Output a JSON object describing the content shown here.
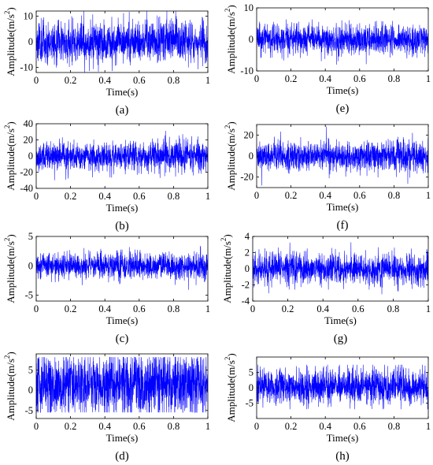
{
  "colors": {
    "signal": "#0000ff",
    "axes": "#000000",
    "background": "#ffffff"
  },
  "chart_data": [
    {
      "type": "line",
      "caption": "(a)",
      "xlabel": "Time(s)",
      "ylabel": "Amplitude(m/s",
      "ylabel_sup": "2",
      "ylabel_close": ")",
      "xlim": [
        0,
        1
      ],
      "ylim": [
        -12,
        12
      ],
      "xticks": [
        0,
        0.2,
        0.4,
        0.6,
        0.8,
        1
      ],
      "xtick_labels": [
        "0",
        "0.2",
        "0.4",
        "0.6",
        "0.8",
        "1"
      ],
      "yticks": [
        -10,
        0,
        10
      ],
      "ytick_labels": [
        "-10",
        "0",
        "10"
      ],
      "series": [
        {
          "sigma": 4.0,
          "ymin": -12,
          "ymax": 12,
          "seed": 11
        }
      ]
    },
    {
      "type": "line",
      "caption": "(e)",
      "xlabel": "Time(s)",
      "ylabel": "Amplitude(m/s",
      "ylabel_sup": "2",
      "ylabel_close": ")",
      "xlim": [
        0,
        1
      ],
      "ylim": [
        -10,
        10
      ],
      "xticks": [
        0,
        0.2,
        0.4,
        0.6,
        0.8,
        1
      ],
      "xtick_labels": [
        "0",
        "0.2",
        "0.4",
        "0.6",
        "0.8",
        "1"
      ],
      "yticks": [
        -10,
        0,
        10
      ],
      "ytick_labels": [
        "-10",
        "0",
        "10"
      ],
      "series": [
        {
          "sigma": 2.3,
          "ymin": -8,
          "ymax": 7.5,
          "seed": 23
        }
      ]
    },
    {
      "type": "line",
      "caption": "(b)",
      "xlabel": "Time(s)",
      "ylabel": "Amplitude(m/s",
      "ylabel_sup": "2",
      "ylabel_close": ")",
      "xlim": [
        0,
        1
      ],
      "ylim": [
        -40,
        40
      ],
      "xticks": [
        0,
        0.2,
        0.4,
        0.6,
        0.8,
        1
      ],
      "xtick_labels": [
        "0",
        "0.2",
        "0.4",
        "0.6",
        "0.8",
        "1"
      ],
      "yticks": [
        -40,
        -20,
        0,
        20,
        40
      ],
      "ytick_labels": [
        "-40",
        "-20",
        "0",
        "20",
        "40"
      ],
      "series": [
        {
          "sigma": 9.0,
          "ymin": -38,
          "ymax": 40,
          "seed": 37
        }
      ]
    },
    {
      "type": "line",
      "caption": "(f)",
      "xlabel": "Time(s)",
      "ylabel": "Amplitude(m/s",
      "ylabel_sup": "2",
      "ylabel_close": ")",
      "xlim": [
        0,
        1
      ],
      "ylim": [
        -30,
        30
      ],
      "xticks": [
        0,
        0.2,
        0.4,
        0.6,
        0.8,
        1
      ],
      "xtick_labels": [
        "0",
        "0.2",
        "0.4",
        "0.6",
        "0.8",
        "1"
      ],
      "yticks": [
        -20,
        0,
        20
      ],
      "ytick_labels": [
        "-20",
        "0",
        "20"
      ],
      "series": [
        {
          "sigma": 7.0,
          "ymin": -28,
          "ymax": 28,
          "seed": 41
        }
      ]
    },
    {
      "type": "line",
      "caption": "(c)",
      "xlabel": "Time(s)",
      "ylabel": "Amplitude(m/s",
      "ylabel_sup": "2",
      "ylabel_close": ")",
      "xlim": [
        0,
        1
      ],
      "ylim": [
        -6,
        5
      ],
      "xticks": [
        0,
        0.2,
        0.4,
        0.6,
        0.8,
        1
      ],
      "xtick_labels": [
        "0",
        "0.2",
        "0.4",
        "0.6",
        "0.8",
        "1"
      ],
      "yticks": [
        -5,
        0,
        5
      ],
      "ytick_labels": [
        "-5",
        "0",
        "5"
      ],
      "series": [
        {
          "sigma": 1.1,
          "ymin": -5.8,
          "ymax": 4.2,
          "seed": 53
        }
      ]
    },
    {
      "type": "line",
      "caption": "(g)",
      "xlabel": "Time(s)",
      "ylabel": "Amplitude(m/s",
      "ylabel_sup": "2",
      "ylabel_close": ")",
      "xlim": [
        0,
        1
      ],
      "ylim": [
        -4,
        4
      ],
      "xticks": [
        0,
        0.2,
        0.4,
        0.6,
        0.8,
        1
      ],
      "xtick_labels": [
        "0",
        "0.2",
        "0.4",
        "0.6",
        "0.8",
        "1"
      ],
      "yticks": [
        -4,
        -2,
        0,
        2,
        4
      ],
      "ytick_labels": [
        "-4",
        "-2",
        "0",
        "2",
        "4"
      ],
      "series": [
        {
          "sigma": 0.95,
          "ymin": -4,
          "ymax": 4,
          "seed": 67
        }
      ]
    },
    {
      "type": "line",
      "caption": "(d)",
      "xlabel": "Time(s)",
      "ylabel": "Amplitude(m/s",
      "ylabel_sup": "2",
      "ylabel_close": ")",
      "xlim": [
        0,
        1
      ],
      "ylim": [
        -7,
        9
      ],
      "xticks": [
        0,
        0.2,
        0.4,
        0.6,
        0.8,
        1
      ],
      "xtick_labels": [
        "0",
        "0.2",
        "0.4",
        "0.6",
        "0.8",
        "1"
      ],
      "yticks": [
        -5,
        0,
        5
      ],
      "ytick_labels": [
        "-5",
        "0",
        "5"
      ],
      "series": [
        {
          "sigma": 4.0,
          "ymin": -5.5,
          "ymax": 8.2,
          "offset": 1.3,
          "seed": 79
        }
      ]
    },
    {
      "type": "line",
      "caption": "(h)",
      "xlabel": "Time(s)",
      "ylabel": "Amplitude(m/s",
      "ylabel_sup": "2",
      "ylabel_close": ")",
      "xlim": [
        0,
        1
      ],
      "ylim": [
        -10,
        10
      ],
      "xticks": [
        0,
        0.2,
        0.4,
        0.6,
        0.8,
        1
      ],
      "xtick_labels": [
        "0",
        "0.2",
        "0.4",
        "0.6",
        "0.8",
        "1"
      ],
      "yticks": [
        -5,
        0,
        5
      ],
      "ytick_labels": [
        "-5",
        "0",
        "5"
      ],
      "series": [
        {
          "sigma": 2.8,
          "ymin": -7,
          "ymax": 7.5,
          "offset": 0.3,
          "seed": 97
        }
      ]
    }
  ]
}
